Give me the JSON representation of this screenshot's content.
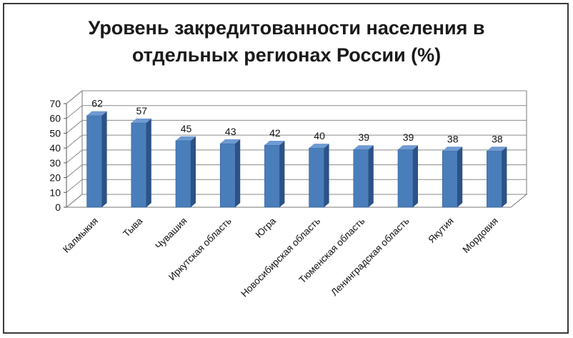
{
  "chart_data": {
    "type": "bar",
    "title": "Уровень закредитованности населения в отдельных регионах России (%)",
    "title_lines": [
      "Уровень закредитованности населения в",
      "отдельных регионах России (%)"
    ],
    "categories": [
      "Калмыкия",
      "Тыва",
      "Чувашия",
      "Иркутская область",
      "Югра",
      "Новосибирская область",
      "Тюменская область",
      "Ленинградская область",
      "Якутия",
      "Мордовия"
    ],
    "values": [
      62,
      57,
      45,
      43,
      42,
      40,
      39,
      39,
      38,
      38
    ],
    "yticks": [
      0,
      10,
      20,
      30,
      40,
      50,
      60,
      70
    ],
    "ylim": [
      0,
      70
    ],
    "xlabel": "",
    "ylabel": "",
    "grid": true,
    "legend": "none",
    "style": "3d-column",
    "bar_color": "#4a7ebb",
    "bar_side_color": "#2c5286",
    "bar_top_color": "#6f9ad2"
  }
}
